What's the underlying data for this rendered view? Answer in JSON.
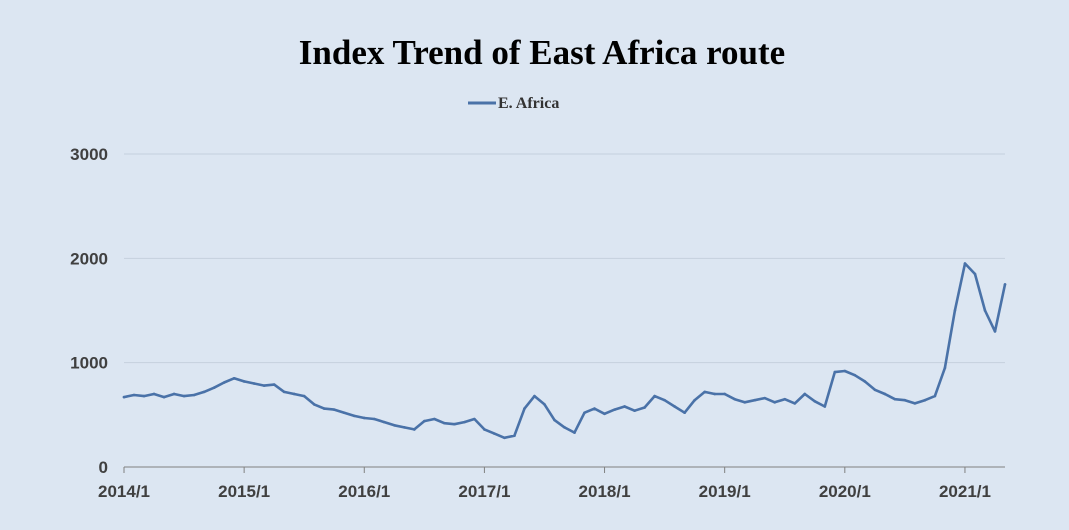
{
  "chart_data": {
    "type": "line",
    "title": "Index Trend of East Africa route",
    "legend": {
      "position": "top-center",
      "entries": [
        "E. Africa"
      ]
    },
    "xlabel": "",
    "ylabel": "",
    "ylim": [
      0,
      3000
    ],
    "y_ticks": [
      "0",
      "1000",
      "2000",
      "3000"
    ],
    "x_ticks": [
      "2014/1",
      "2015/1",
      "2016/1",
      "2017/1",
      "2018/1",
      "2019/1",
      "2020/1",
      "2021/1"
    ],
    "x_range": [
      "2014/1",
      "2021/5"
    ],
    "grid": {
      "horizontal": true,
      "vertical": false
    },
    "colors": {
      "series": "#4a72a8",
      "background": "#dce6f2",
      "grid": "#c5d0de",
      "axis": "#808080"
    },
    "series": [
      {
        "name": "E. Africa",
        "x": [
          "2014/1",
          "2014/2",
          "2014/3",
          "2014/4",
          "2014/5",
          "2014/6",
          "2014/7",
          "2014/8",
          "2014/9",
          "2014/10",
          "2014/11",
          "2014/12",
          "2015/1",
          "2015/2",
          "2015/3",
          "2015/4",
          "2015/5",
          "2015/6",
          "2015/7",
          "2015/8",
          "2015/9",
          "2015/10",
          "2015/11",
          "2015/12",
          "2016/1",
          "2016/2",
          "2016/3",
          "2016/4",
          "2016/5",
          "2016/6",
          "2016/7",
          "2016/8",
          "2016/9",
          "2016/10",
          "2016/11",
          "2016/12",
          "2017/1",
          "2017/2",
          "2017/3",
          "2017/4",
          "2017/5",
          "2017/6",
          "2017/7",
          "2017/8",
          "2017/9",
          "2017/10",
          "2017/11",
          "2017/12",
          "2018/1",
          "2018/2",
          "2018/3",
          "2018/4",
          "2018/5",
          "2018/6",
          "2018/7",
          "2018/8",
          "2018/9",
          "2018/10",
          "2018/11",
          "2018/12",
          "2019/1",
          "2019/2",
          "2019/3",
          "2019/4",
          "2019/5",
          "2019/6",
          "2019/7",
          "2019/8",
          "2019/9",
          "2019/10",
          "2019/11",
          "2019/12",
          "2020/1",
          "2020/2",
          "2020/3",
          "2020/4",
          "2020/5",
          "2020/6",
          "2020/7",
          "2020/8",
          "2020/9",
          "2020/10",
          "2020/11",
          "2020/12",
          "2021/1",
          "2021/2",
          "2021/3",
          "2021/4",
          "2021/5"
        ],
        "values": [
          670,
          690,
          680,
          700,
          670,
          700,
          680,
          690,
          720,
          760,
          810,
          850,
          820,
          800,
          780,
          790,
          720,
          700,
          680,
          600,
          560,
          550,
          520,
          490,
          470,
          460,
          430,
          400,
          380,
          360,
          440,
          460,
          420,
          410,
          430,
          460,
          360,
          320,
          280,
          300,
          560,
          680,
          600,
          450,
          380,
          330,
          520,
          560,
          510,
          550,
          580,
          540,
          570,
          680,
          640,
          580,
          520,
          640,
          720,
          700,
          700,
          650,
          620,
          640,
          660,
          620,
          650,
          610,
          700,
          630,
          580,
          910,
          920,
          880,
          820,
          740,
          700,
          650,
          640,
          610,
          640,
          680,
          950,
          1500,
          1950,
          1850,
          1500,
          1300,
          1750
        ]
      }
    ]
  }
}
